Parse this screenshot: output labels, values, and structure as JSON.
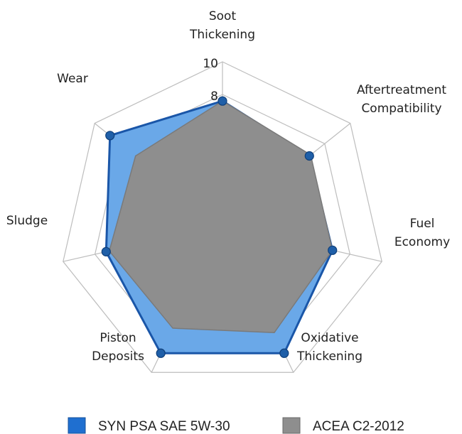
{
  "chart_data": {
    "type": "radar",
    "axes": [
      [
        "Soot",
        "Thickening"
      ],
      [
        "Aftertreatment",
        "Compatibility"
      ],
      [
        "Fuel",
        "Economy"
      ],
      [
        "Oxidative",
        "Thickening"
      ],
      [
        "Piston",
        "Deposits"
      ],
      [
        "Sludge"
      ],
      [
        "Wear"
      ]
    ],
    "rlim": [
      0,
      10
    ],
    "ticks": [
      {
        "label": "10",
        "value": 10
      },
      {
        "label": "8",
        "value": 8
      }
    ],
    "grid_levels": [
      4,
      6,
      8,
      10
    ],
    "series": [
      {
        "name": "SYN PSA SAE 5W-30",
        "values": [
          7.6,
          6.8,
          6.9,
          8.7,
          8.7,
          7.3,
          8.8
        ],
        "color": "#6aa8e8",
        "stroke": "#1a56a8",
        "marker": "#1f5fa8"
      },
      {
        "name": "ACEA C2-2012",
        "values": [
          7.6,
          6.9,
          6.9,
          7.3,
          7.0,
          7.1,
          6.8
        ],
        "color": "#8e8e8e",
        "stroke": "#7a7a7a"
      }
    ],
    "legend": "bottom"
  }
}
